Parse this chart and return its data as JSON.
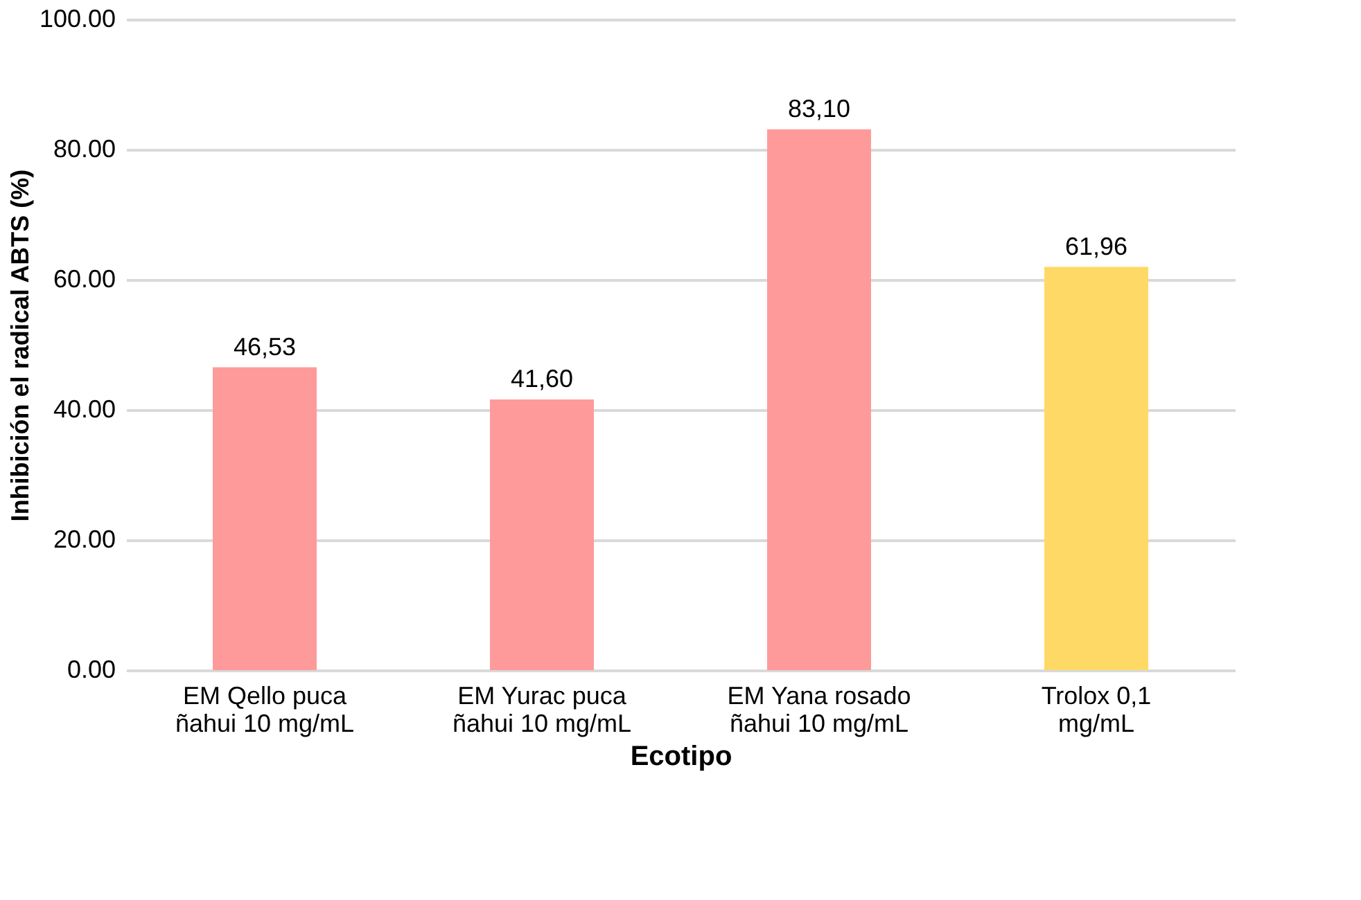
{
  "chart_data": {
    "type": "bar",
    "xlabel": "Ecotipo",
    "ylabel": "Inhibición el radical ABTS (%)",
    "categories": [
      "EM Qello puca ñahui 10 mg/mL",
      "EM Yurac puca ñahui 10 mg/mL",
      "EM Yana rosado ñahui 10 mg/mL",
      "Trolox 0,1 mg/mL"
    ],
    "values": [
      46.53,
      41.6,
      83.1,
      61.96
    ],
    "colors": [
      "#ff9a9a",
      "#ff9a9a",
      "#ff9a9a",
      "#ffd966"
    ],
    "value_labels": [
      "46,53",
      "41,60",
      "83,10",
      "61,96"
    ],
    "ylim": [
      0,
      100
    ],
    "yticks": [
      {
        "value": 0,
        "label": "0.00"
      },
      {
        "value": 20,
        "label": "20.00"
      },
      {
        "value": 40,
        "label": "40.00"
      },
      {
        "value": 60,
        "label": "60.00"
      },
      {
        "value": 80,
        "label": "80.00"
      },
      {
        "value": 100,
        "label": "100.00"
      }
    ],
    "grid": "y"
  }
}
